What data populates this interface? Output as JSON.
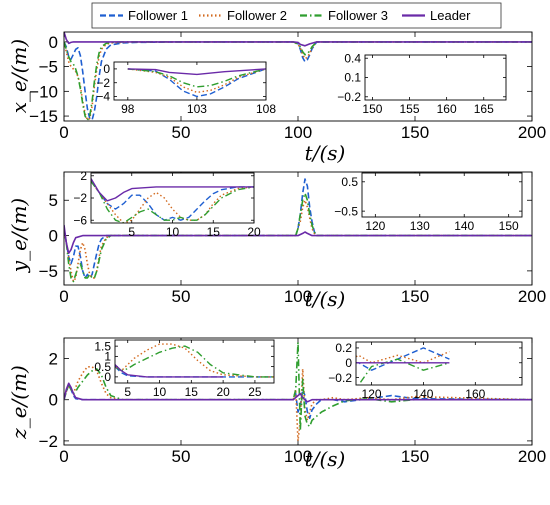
{
  "colors": {
    "follower1": "#1f5fd1",
    "follower2": "#d2691e",
    "follower3": "#2f9e2f",
    "leader": "#6a2aa8"
  },
  "legend": {
    "placement": "top",
    "entries": [
      {
        "label": "Follower 1",
        "style": "dashed",
        "color_key": "follower1"
      },
      {
        "label": "Follower 2",
        "style": "dotted",
        "color_key": "follower2"
      },
      {
        "label": "Follower 3",
        "style": "dashdot",
        "color_key": "follower3"
      },
      {
        "label": "Leader",
        "style": "solid",
        "color_key": "leader"
      }
    ]
  },
  "chart_data": [
    {
      "type": "line",
      "id": "xe",
      "ylabel": "x_e/(m)",
      "xlabel": "t/(s)",
      "xlim": [
        0,
        200
      ],
      "ylim": [
        -16,
        2
      ],
      "xticks": [
        0,
        50,
        100,
        150,
        200
      ],
      "yticks": [
        0,
        -5,
        -10,
        -15
      ],
      "series": [
        {
          "name": "Follower 1",
          "x": [
            0,
            1,
            2,
            3,
            4,
            5,
            6,
            7,
            8,
            9,
            10,
            11,
            12,
            13,
            14,
            15,
            16,
            18,
            20,
            25,
            30,
            50,
            98,
            100,
            101,
            102,
            103,
            104,
            105,
            106,
            108,
            150,
            200
          ],
          "y": [
            0,
            -1,
            -3,
            -3.5,
            -2.5,
            -1.5,
            -1.2,
            -2.8,
            -6,
            -10,
            -13.5,
            -15.5,
            -15.8,
            -14,
            -11,
            -7,
            -4,
            -1.5,
            -0.6,
            -0.2,
            -0.1,
            0,
            0,
            -0.3,
            -1.5,
            -3.2,
            -4,
            -3.6,
            -2.6,
            -1.4,
            0,
            0,
            0
          ]
        },
        {
          "name": "Follower 2",
          "x": [
            0,
            1,
            2,
            3,
            4,
            5,
            6,
            7,
            8,
            9,
            10,
            11,
            12,
            13,
            14,
            15,
            16,
            18,
            20,
            25,
            30,
            50,
            98,
            100,
            101,
            102,
            103,
            104,
            105,
            106,
            108,
            150,
            200
          ],
          "y": [
            0,
            -2,
            -4,
            -5,
            -5.5,
            -6,
            -7,
            -9,
            -12,
            -14.5,
            -15.8,
            -15.5,
            -13,
            -9,
            -5.5,
            -3,
            -1.5,
            -0.5,
            -0.2,
            -0.1,
            0,
            0,
            0,
            -0.5,
            -1.2,
            -2.6,
            -3.4,
            -3.1,
            -2.3,
            -1.2,
            0,
            0,
            0
          ]
        },
        {
          "name": "Follower 3",
          "x": [
            0,
            1,
            2,
            3,
            4,
            5,
            6,
            7,
            8,
            9,
            10,
            11,
            12,
            13,
            14,
            15,
            16,
            18,
            20,
            25,
            30,
            50,
            98,
            100,
            101,
            102,
            103,
            104,
            105,
            106,
            108,
            150,
            200
          ],
          "y": [
            0,
            -1.5,
            -3,
            -4,
            -4.5,
            -5.5,
            -7,
            -9.5,
            -12.5,
            -15,
            -15.8,
            -15,
            -12,
            -8,
            -4.5,
            -2.2,
            -1,
            -0.3,
            -0.1,
            0,
            0,
            0,
            0,
            -0.4,
            -1,
            -2,
            -2.6,
            -2.4,
            -1.8,
            -1,
            0,
            0,
            0
          ]
        },
        {
          "name": "Leader",
          "x": [
            0,
            1,
            2,
            3,
            4,
            5,
            8,
            10,
            20,
            50,
            98,
            100,
            101,
            103,
            105,
            108,
            150,
            200
          ],
          "y": [
            2,
            0.5,
            -0.3,
            -0.1,
            0,
            0,
            0,
            0,
            0,
            0,
            0,
            -0.1,
            -0.5,
            -0.8,
            -0.4,
            0,
            0,
            0
          ]
        }
      ],
      "insets": [
        {
          "xlim": [
            97,
            108
          ],
          "ylim": [
            -4.5,
            1
          ],
          "xticks": [
            98,
            103,
            108
          ],
          "yticks": [
            0,
            -2,
            -4
          ]
        },
        {
          "xlim": [
            149,
            168
          ],
          "ylim": [
            -0.25,
            0.45
          ],
          "xticks": [
            150,
            155,
            160,
            165
          ],
          "yticks": [
            0.4,
            0.1,
            -0.2
          ]
        }
      ]
    },
    {
      "type": "line",
      "id": "ye",
      "ylabel": "y_e/(m)",
      "xlabel": "t/(s)",
      "xlim": [
        0,
        200
      ],
      "ylim": [
        -7,
        9
      ],
      "xticks": [
        0,
        50,
        100,
        150,
        200
      ],
      "yticks": [
        5,
        0,
        -5
      ],
      "series": [
        {
          "name": "Follower 1",
          "x": [
            0,
            1,
            2,
            3,
            4,
            5,
            6,
            7,
            8,
            9,
            10,
            11,
            12,
            13,
            14,
            15,
            16,
            18,
            20,
            25,
            50,
            99,
            100,
            101,
            102,
            103,
            104,
            105,
            106,
            107,
            108,
            110,
            150,
            200
          ],
          "y": [
            1,
            -1,
            -3,
            -4,
            -3,
            -1.5,
            -1.5,
            -3,
            -5,
            -6,
            -5.5,
            -6,
            -5.5,
            -4,
            -2.5,
            -1.2,
            -0.5,
            0,
            0,
            0,
            0,
            0,
            1,
            3,
            6,
            8,
            7,
            4,
            2,
            0.5,
            0,
            0,
            0,
            0
          ]
        },
        {
          "name": "Follower 2",
          "x": [
            0,
            1,
            2,
            3,
            4,
            5,
            6,
            7,
            8,
            9,
            10,
            11,
            12,
            13,
            14,
            15,
            16,
            18,
            20,
            25,
            50,
            99,
            100,
            101,
            102,
            103,
            104,
            105,
            106,
            107,
            108,
            110,
            150,
            200
          ],
          "y": [
            1,
            -1,
            -3,
            -5,
            -6.5,
            -6,
            -4,
            -2,
            -1,
            -2,
            -4,
            -5.5,
            -6,
            -6,
            -5,
            -3,
            -1.5,
            -0.3,
            0,
            0,
            0,
            0,
            1,
            2,
            4,
            5,
            4,
            2.5,
            1,
            0.3,
            0,
            0,
            0,
            0
          ]
        },
        {
          "name": "Follower 3",
          "x": [
            0,
            1,
            2,
            3,
            4,
            5,
            6,
            7,
            8,
            9,
            10,
            11,
            12,
            13,
            14,
            15,
            16,
            18,
            20,
            25,
            50,
            99,
            100,
            101,
            102,
            103,
            104,
            105,
            106,
            107,
            108,
            110,
            150,
            200
          ],
          "y": [
            1,
            -1,
            -4,
            -6,
            -6.5,
            -5.5,
            -4.5,
            -4,
            -5,
            -6,
            -6,
            -5.5,
            -6,
            -6,
            -5,
            -3.5,
            -2,
            -0.5,
            0,
            0,
            0,
            0,
            1,
            3,
            5,
            6,
            5,
            3,
            1.5,
            0.5,
            0,
            0,
            0,
            0
          ]
        },
        {
          "name": "Leader",
          "x": [
            0,
            1,
            2,
            3,
            4,
            5,
            8,
            10,
            20,
            50,
            99,
            100,
            102,
            103,
            104,
            106,
            108,
            150,
            200
          ],
          "y": [
            1.5,
            -1,
            -2.5,
            -2,
            -1,
            -0.3,
            0,
            0,
            0,
            0,
            0,
            0,
            0.3,
            0.5,
            0.3,
            0,
            0,
            0,
            0
          ]
        }
      ],
      "insets": [
        {
          "xlim": [
            0,
            20
          ],
          "ylim": [
            -6.5,
            2.5
          ],
          "xticks": [
            5,
            10,
            15,
            20
          ],
          "yticks": [
            2,
            -2,
            -6
          ]
        },
        {
          "xlim": [
            117,
            153
          ],
          "ylim": [
            -0.7,
            0.8
          ],
          "xticks": [
            120,
            130,
            140,
            150
          ],
          "yticks": [
            0.5,
            -0.5
          ]
        }
      ]
    },
    {
      "type": "line",
      "id": "ze",
      "ylabel": "z_e/(m)",
      "xlabel": "t/(s)",
      "xlim": [
        0,
        200
      ],
      "ylim": [
        -2.2,
        3
      ],
      "xticks": [
        0,
        50,
        100,
        150,
        200
      ],
      "yticks": [
        2,
        0,
        -2
      ],
      "series": [
        {
          "name": "Follower 1",
          "x": [
            0,
            1,
            2,
            3,
            4,
            5,
            8,
            10,
            15,
            20,
            25,
            30,
            50,
            98,
            99,
            100,
            101,
            102,
            103,
            104,
            105,
            106,
            108,
            110,
            115,
            120,
            130,
            140,
            150,
            200
          ],
          "y": [
            0,
            0.4,
            0.7,
            0.5,
            0.2,
            0.05,
            0,
            0,
            0,
            0,
            0,
            0,
            0,
            0,
            0.3,
            -0.6,
            -0.3,
            0.5,
            0.2,
            -0.6,
            -0.9,
            -0.5,
            -0.2,
            0,
            0,
            -0.1,
            0.05,
            0.2,
            0.05,
            0
          ]
        },
        {
          "name": "Follower 2",
          "x": [
            0,
            1,
            2,
            3,
            4,
            5,
            6,
            8,
            10,
            12,
            14,
            16,
            18,
            20,
            25,
            30,
            50,
            98,
            99,
            100,
            101,
            102,
            103,
            104,
            105,
            106,
            108,
            110,
            115,
            120,
            130,
            140,
            150,
            200
          ],
          "y": [
            0,
            0.4,
            0.7,
            0.5,
            0.3,
            0.6,
            0.9,
            1.3,
            1.6,
            1.6,
            1.4,
            0.8,
            0.3,
            0.1,
            0,
            0,
            0,
            0,
            0.5,
            -2,
            -1,
            1.5,
            -0.5,
            -1,
            -0.6,
            -0.2,
            0,
            0,
            0.1,
            0,
            0.1,
            0,
            0.15,
            0
          ]
        },
        {
          "name": "Follower 3",
          "x": [
            0,
            1,
            2,
            3,
            4,
            5,
            6,
            8,
            10,
            12,
            14,
            16,
            18,
            20,
            25,
            30,
            50,
            98,
            99,
            100,
            101,
            102,
            103,
            104,
            105,
            106,
            108,
            110,
            115,
            120,
            130,
            140,
            150,
            200
          ],
          "y": [
            0,
            0.4,
            0.7,
            0.5,
            0.3,
            0.4,
            0.6,
            0.9,
            1.2,
            1.4,
            1.5,
            1.2,
            0.6,
            0.2,
            0,
            0,
            0,
            0,
            0.5,
            2.8,
            -1.5,
            1,
            -0.8,
            -1.2,
            -1.3,
            -1,
            -0.8,
            -0.6,
            -0.3,
            -0.05,
            0.05,
            -0.1,
            0,
            0
          ]
        },
        {
          "name": "Leader",
          "x": [
            0,
            1,
            2,
            3,
            4,
            5,
            8,
            10,
            20,
            50,
            98,
            100,
            101,
            102,
            104,
            106,
            110,
            150,
            200
          ],
          "y": [
            0,
            0.5,
            0.8,
            0.6,
            0.3,
            0.1,
            0,
            0,
            0,
            0,
            0,
            0.2,
            0.3,
            0.1,
            -0.1,
            0,
            0,
            0,
            0
          ]
        }
      ],
      "insets": [
        {
          "xlim": [
            3,
            28
          ],
          "ylim": [
            -0.3,
            1.8
          ],
          "xticks": [
            5,
            10,
            15,
            20,
            25
          ],
          "yticks": [
            1.5,
            1,
            0.5,
            0
          ]
        },
        {
          "xlim": [
            114,
            178
          ],
          "ylim": [
            -0.3,
            0.28
          ],
          "xticks": [
            120,
            140,
            160
          ],
          "yticks": [
            0.2,
            0,
            -0.2
          ]
        }
      ]
    }
  ]
}
